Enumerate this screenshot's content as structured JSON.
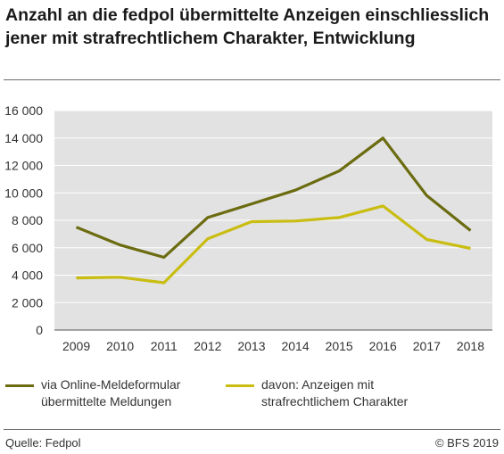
{
  "chart_data": {
    "type": "line",
    "title": "Anzahl an die fedpol übermittelte Anzeigen einschliesslich jener mit strafrechtlichem Charakter, Entwicklung",
    "xlabel": "",
    "ylabel": "",
    "x": [
      "2009",
      "2010",
      "2011",
      "2012",
      "2013",
      "2014",
      "2015",
      "2016",
      "2017",
      "2018"
    ],
    "y_ticks": [
      "0",
      "2 000",
      "4 000",
      "6 000",
      "8 000",
      "10 000",
      "12 000",
      "14 000",
      "16 000"
    ],
    "ylim": [
      0,
      16000
    ],
    "grid": true,
    "legend_position": "bottom",
    "series": [
      {
        "name": "via Online-Meldeformular übermittelte Meldungen",
        "color": "#6b6b10",
        "values": [
          7500,
          6200,
          5300,
          8200,
          9200,
          10200,
          11600,
          14000,
          9800,
          7250
        ]
      },
      {
        "name": "davon: Anzeigen mit strafrechtlichem Charakter",
        "color": "#c9bd12",
        "values": [
          3800,
          3850,
          3450,
          6650,
          7900,
          7950,
          8200,
          9050,
          6600,
          5950
        ]
      }
    ]
  },
  "footer": {
    "source": "Quelle: Fedpol",
    "copyright": "© BFS 2019"
  }
}
